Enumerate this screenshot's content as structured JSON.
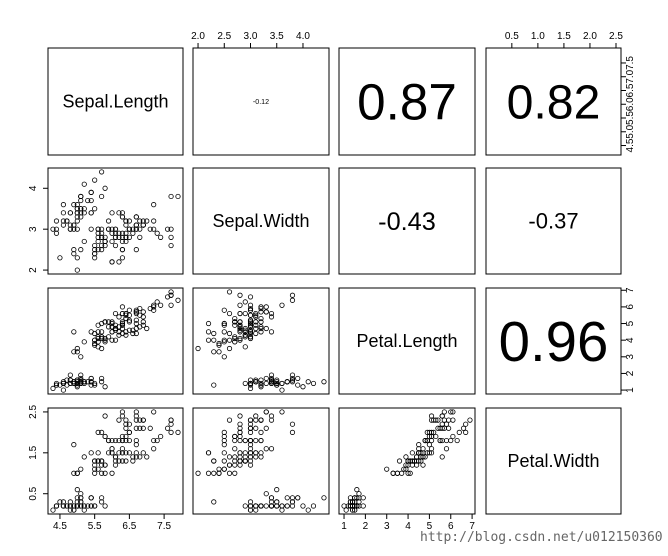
{
  "chart_data": {
    "type": "scatter",
    "layout": "pairs-matrix",
    "variables": [
      "Sepal.Length",
      "Sepal.Width",
      "Petal.Length",
      "Petal.Width"
    ],
    "ranges": {
      "Sepal.Length": [
        4.3,
        7.9
      ],
      "Sepal.Width": [
        2.0,
        4.4
      ],
      "Petal.Length": [
        1.0,
        6.9
      ],
      "Petal.Width": [
        0.1,
        2.5
      ]
    },
    "ticks": {
      "Sepal.Length": [
        4.5,
        5.5,
        6.5,
        7.5
      ],
      "Sepal.Width": [
        2.0,
        3.0,
        4.0
      ],
      "Sepal.Width_top": [
        2.0,
        2.5,
        3.0,
        3.5,
        4.0
      ],
      "Petal.Length": [
        1,
        2,
        3,
        4,
        5,
        6,
        7
      ],
      "Petal.Width": [
        0.5,
        1.5,
        2.5
      ],
      "Petal.Width_top": [
        0.5,
        1.0,
        1.5,
        2.0,
        2.5
      ],
      "Sepal.Length_right": [
        4.5,
        5.0,
        5.5,
        6.0,
        6.5,
        7.0,
        7.5
      ]
    },
    "correlations": [
      {
        "row": 0,
        "col": 1,
        "value": "-0.12"
      },
      {
        "row": 0,
        "col": 2,
        "value": "0.87"
      },
      {
        "row": 0,
        "col": 3,
        "value": "0.82"
      },
      {
        "row": 1,
        "col": 2,
        "value": "-0.43"
      },
      {
        "row": 1,
        "col": 3,
        "value": "-0.37"
      },
      {
        "row": 2,
        "col": 3,
        "value": "0.96"
      }
    ],
    "data": {
      "Sepal.Length": [
        5.1,
        4.9,
        4.7,
        4.6,
        5.0,
        5.4,
        4.6,
        5.0,
        4.4,
        4.9,
        5.4,
        4.8,
        4.8,
        4.3,
        5.8,
        5.7,
        5.4,
        5.1,
        5.7,
        5.1,
        5.4,
        5.1,
        4.6,
        5.1,
        4.8,
        5.0,
        5.0,
        5.2,
        5.2,
        4.7,
        4.8,
        5.4,
        5.2,
        5.5,
        4.9,
        5.0,
        5.5,
        4.9,
        4.4,
        5.1,
        5.0,
        4.5,
        4.4,
        5.0,
        5.1,
        4.8,
        5.1,
        4.6,
        5.3,
        5.0,
        7.0,
        6.4,
        6.9,
        5.5,
        6.5,
        5.7,
        6.3,
        4.9,
        6.6,
        5.2,
        5.0,
        5.9,
        6.0,
        6.1,
        5.6,
        6.7,
        5.6,
        5.8,
        6.2,
        5.6,
        5.9,
        6.1,
        6.3,
        6.1,
        6.4,
        6.6,
        6.8,
        6.7,
        6.0,
        5.7,
        5.5,
        5.5,
        5.8,
        6.0,
        5.4,
        6.0,
        6.7,
        6.3,
        5.6,
        5.5,
        5.5,
        6.1,
        5.8,
        5.0,
        5.6,
        5.7,
        5.7,
        6.2,
        5.1,
        5.7,
        6.3,
        5.8,
        7.1,
        6.3,
        6.5,
        7.6,
        4.9,
        7.3,
        6.7,
        7.2,
        6.5,
        6.4,
        6.8,
        5.7,
        5.8,
        6.4,
        6.5,
        7.7,
        7.7,
        6.0,
        6.9,
        5.6,
        7.7,
        6.3,
        6.7,
        7.2,
        6.2,
        6.1,
        6.4,
        7.2,
        7.4,
        7.9,
        6.4,
        6.3,
        6.1,
        7.7,
        6.3,
        6.4,
        6.0,
        6.9,
        6.7,
        6.9,
        5.8,
        6.8,
        6.7,
        6.7,
        6.3,
        6.5,
        6.2,
        5.9
      ],
      "Sepal.Width": [
        3.5,
        3.0,
        3.2,
        3.1,
        3.6,
        3.9,
        3.4,
        3.4,
        2.9,
        3.1,
        3.7,
        3.4,
        3.0,
        3.0,
        4.0,
        4.4,
        3.9,
        3.5,
        3.8,
        3.8,
        3.4,
        3.7,
        3.6,
        3.3,
        3.4,
        3.0,
        3.4,
        3.5,
        3.4,
        3.2,
        3.1,
        3.4,
        4.1,
        4.2,
        3.1,
        3.2,
        3.5,
        3.6,
        3.0,
        3.4,
        3.5,
        2.3,
        3.2,
        3.5,
        3.8,
        3.0,
        3.8,
        3.2,
        3.7,
        3.3,
        3.2,
        3.2,
        3.1,
        2.3,
        2.8,
        2.8,
        3.3,
        2.4,
        2.9,
        2.7,
        2.0,
        3.0,
        2.2,
        2.9,
        2.9,
        3.1,
        3.0,
        2.7,
        2.2,
        2.5,
        3.2,
        2.8,
        2.5,
        2.8,
        2.9,
        3.0,
        2.8,
        3.0,
        2.9,
        2.6,
        2.4,
        2.4,
        2.7,
        2.7,
        3.0,
        3.4,
        3.1,
        2.3,
        3.0,
        2.5,
        2.6,
        3.0,
        2.6,
        2.3,
        2.7,
        3.0,
        2.9,
        2.9,
        2.5,
        2.8,
        3.3,
        2.7,
        3.0,
        2.9,
        3.0,
        3.0,
        2.5,
        2.9,
        2.5,
        3.6,
        3.2,
        2.7,
        3.0,
        2.5,
        2.8,
        3.2,
        3.0,
        3.8,
        2.6,
        2.2,
        3.2,
        2.8,
        2.8,
        2.7,
        3.3,
        3.2,
        2.8,
        3.0,
        2.8,
        3.0,
        2.8,
        3.8,
        2.8,
        2.8,
        2.6,
        3.0,
        3.4,
        3.1,
        3.0,
        3.1,
        3.1,
        3.1,
        2.7,
        3.2,
        3.3,
        3.0,
        2.5,
        3.0,
        3.4,
        3.0
      ],
      "Petal.Length": [
        1.4,
        1.4,
        1.3,
        1.5,
        1.4,
        1.7,
        1.4,
        1.5,
        1.4,
        1.5,
        1.5,
        1.6,
        1.4,
        1.1,
        1.2,
        1.5,
        1.3,
        1.4,
        1.7,
        1.5,
        1.7,
        1.5,
        1.0,
        1.7,
        1.9,
        1.6,
        1.6,
        1.5,
        1.4,
        1.6,
        1.6,
        1.5,
        1.5,
        1.4,
        1.5,
        1.2,
        1.3,
        1.4,
        1.3,
        1.5,
        1.3,
        1.3,
        1.3,
        1.6,
        1.9,
        1.4,
        1.6,
        1.4,
        1.5,
        1.4,
        4.7,
        4.5,
        4.9,
        4.0,
        4.6,
        4.5,
        4.7,
        3.3,
        4.6,
        3.9,
        3.5,
        4.2,
        4.0,
        4.7,
        3.6,
        4.4,
        4.5,
        4.1,
        4.5,
        3.9,
        4.8,
        4.0,
        4.9,
        4.7,
        4.3,
        4.4,
        4.8,
        5.0,
        4.5,
        3.5,
        3.8,
        3.7,
        3.9,
        5.1,
        4.5,
        4.5,
        4.7,
        4.4,
        4.1,
        4.0,
        4.4,
        4.6,
        4.0,
        3.3,
        4.2,
        4.2,
        4.2,
        4.3,
        3.0,
        4.1,
        6.0,
        5.1,
        5.9,
        5.6,
        5.8,
        6.6,
        4.5,
        6.3,
        5.8,
        6.1,
        5.1,
        5.3,
        5.5,
        5.0,
        5.1,
        5.3,
        5.5,
        6.7,
        6.9,
        5.0,
        5.7,
        4.9,
        6.7,
        4.9,
        5.7,
        6.0,
        4.8,
        4.9,
        5.6,
        5.8,
        6.1,
        6.4,
        5.6,
        5.1,
        5.6,
        6.1,
        5.6,
        5.5,
        4.8,
        5.4,
        5.6,
        5.1,
        5.1,
        5.9,
        5.7,
        5.2,
        5.0,
        5.2,
        5.4,
        5.1
      ],
      "Petal.Width": [
        0.2,
        0.2,
        0.2,
        0.2,
        0.2,
        0.4,
        0.3,
        0.2,
        0.2,
        0.1,
        0.2,
        0.2,
        0.1,
        0.1,
        0.2,
        0.4,
        0.4,
        0.3,
        0.3,
        0.3,
        0.2,
        0.4,
        0.2,
        0.5,
        0.2,
        0.2,
        0.4,
        0.2,
        0.2,
        0.2,
        0.2,
        0.4,
        0.1,
        0.2,
        0.2,
        0.2,
        0.2,
        0.1,
        0.2,
        0.2,
        0.3,
        0.3,
        0.2,
        0.6,
        0.4,
        0.3,
        0.2,
        0.2,
        0.2,
        0.2,
        1.4,
        1.5,
        1.5,
        1.3,
        1.5,
        1.3,
        1.6,
        1.0,
        1.3,
        1.4,
        1.0,
        1.5,
        1.0,
        1.4,
        1.3,
        1.4,
        1.5,
        1.0,
        1.5,
        1.1,
        1.8,
        1.3,
        1.5,
        1.2,
        1.3,
        1.4,
        1.4,
        1.7,
        1.5,
        1.0,
        1.1,
        1.0,
        1.2,
        1.6,
        1.5,
        1.6,
        1.5,
        1.3,
        1.3,
        1.3,
        1.2,
        1.4,
        1.2,
        1.0,
        1.3,
        1.2,
        1.3,
        1.3,
        1.1,
        1.3,
        2.5,
        1.9,
        2.1,
        1.8,
        2.2,
        2.1,
        1.7,
        1.8,
        1.8,
        2.5,
        2.0,
        1.9,
        2.1,
        2.0,
        2.4,
        2.3,
        1.8,
        2.2,
        2.3,
        1.5,
        2.3,
        2.0,
        2.0,
        1.8,
        2.1,
        1.8,
        1.8,
        1.8,
        2.1,
        1.6,
        1.9,
        2.0,
        2.2,
        1.5,
        1.4,
        2.3,
        2.4,
        1.8,
        1.8,
        2.1,
        2.4,
        2.3,
        1.9,
        2.3,
        2.5,
        2.3,
        1.9,
        2.0,
        2.3,
        1.8
      ]
    }
  },
  "watermark": "http://blog.csdn.net/u012150360"
}
